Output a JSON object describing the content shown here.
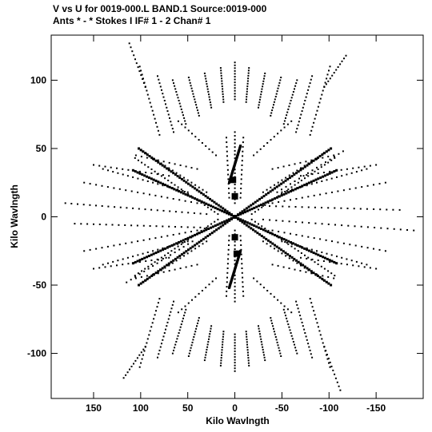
{
  "chart_data": {
    "type": "scatter",
    "title_line1": "V vs U for 0019-000.L BAND.1   Source:0019-000",
    "title_line2": "Ants * - *     Stokes I  IF# 1 - 2  Chan# 1",
    "xlabel": "Kilo Wavlngth",
    "ylabel": "Kilo Wavlngth",
    "xlim": [
      195,
      -200
    ],
    "ylim": [
      -133,
      133
    ],
    "x_reversed": true,
    "grid": false,
    "legend": "none",
    "xticks": [
      {
        "value": 150,
        "label": "150"
      },
      {
        "value": 100,
        "label": "100"
      },
      {
        "value": 50,
        "label": "50"
      },
      {
        "value": 0,
        "label": "0"
      },
      {
        "value": -50,
        "label": "-50"
      },
      {
        "value": -100,
        "label": "-100"
      },
      {
        "value": -150,
        "label": "-150"
      }
    ],
    "yticks": [
      {
        "value": 100,
        "label": "100"
      },
      {
        "value": 50,
        "label": "50"
      },
      {
        "value": 0,
        "label": "0"
      },
      {
        "value": -50,
        "label": "-50"
      },
      {
        "value": -100,
        "label": "-100"
      }
    ],
    "tracks": [
      {
        "start": [
          0,
          86
        ],
        "end": [
          0,
          113
        ],
        "points": 14
      },
      {
        "start": [
          12,
          84
        ],
        "end": [
          15,
          109
        ],
        "points": 14
      },
      {
        "start": [
          -12,
          84
        ],
        "end": [
          -15,
          109
        ],
        "points": 14
      },
      {
        "start": [
          25,
          80
        ],
        "end": [
          32,
          105
        ],
        "points": 14
      },
      {
        "start": [
          -25,
          80
        ],
        "end": [
          -32,
          105
        ],
        "points": 14
      },
      {
        "start": [
          38,
          74
        ],
        "end": [
          49,
          102
        ],
        "points": 15
      },
      {
        "start": [
          -38,
          74
        ],
        "end": [
          -49,
          102
        ],
        "points": 15
      },
      {
        "start": [
          52,
          68
        ],
        "end": [
          66,
          100
        ],
        "points": 16
      },
      {
        "start": [
          -52,
          68
        ],
        "end": [
          -66,
          100
        ],
        "points": 16
      },
      {
        "start": [
          65,
          62
        ],
        "end": [
          82,
          103
        ],
        "points": 17
      },
      {
        "start": [
          -65,
          62
        ],
        "end": [
          -82,
          103
        ],
        "points": 17
      },
      {
        "start": [
          80,
          60
        ],
        "end": [
          101,
          110
        ],
        "points": 18
      },
      {
        "start": [
          -80,
          60
        ],
        "end": [
          -101,
          110
        ],
        "points": 18
      },
      {
        "start": [
          95,
          95
        ],
        "end": [
          112,
          127
        ],
        "points": 12
      },
      {
        "start": [
          -95,
          95
        ],
        "end": [
          -118,
          118
        ],
        "points": 12
      },
      {
        "start": [
          0,
          -86
        ],
        "end": [
          0,
          -113
        ],
        "points": 14
      },
      {
        "start": [
          -12,
          -84
        ],
        "end": [
          -15,
          -109
        ],
        "points": 14
      },
      {
        "start": [
          12,
          -84
        ],
        "end": [
          15,
          -109
        ],
        "points": 14
      },
      {
        "start": [
          -25,
          -80
        ],
        "end": [
          -32,
          -105
        ],
        "points": 14
      },
      {
        "start": [
          25,
          -80
        ],
        "end": [
          32,
          -105
        ],
        "points": 14
      },
      {
        "start": [
          -38,
          -74
        ],
        "end": [
          -49,
          -102
        ],
        "points": 15
      },
      {
        "start": [
          38,
          -74
        ],
        "end": [
          49,
          -102
        ],
        "points": 15
      },
      {
        "start": [
          -52,
          -68
        ],
        "end": [
          -66,
          -100
        ],
        "points": 16
      },
      {
        "start": [
          52,
          -68
        ],
        "end": [
          66,
          -100
        ],
        "points": 16
      },
      {
        "start": [
          -65,
          -62
        ],
        "end": [
          -82,
          -103
        ],
        "points": 17
      },
      {
        "start": [
          65,
          -62
        ],
        "end": [
          82,
          -103
        ],
        "points": 17
      },
      {
        "start": [
          -80,
          -60
        ],
        "end": [
          -101,
          -110
        ],
        "points": 18
      },
      {
        "start": [
          80,
          -60
        ],
        "end": [
          101,
          -110
        ],
        "points": 18
      },
      {
        "start": [
          -95,
          -95
        ],
        "end": [
          -112,
          -127
        ],
        "points": 12
      },
      {
        "start": [
          95,
          -95
        ],
        "end": [
          118,
          -118
        ],
        "points": 12
      },
      {
        "start": [
          0,
          10
        ],
        "end": [
          0,
          62
        ],
        "points": 20
      },
      {
        "start": [
          6,
          14
        ],
        "end": [
          9,
          58
        ],
        "points": 14
      },
      {
        "start": [
          -6,
          14
        ],
        "end": [
          -9,
          58
        ],
        "points": 14
      },
      {
        "start": [
          0,
          -10
        ],
        "end": [
          0,
          -62
        ],
        "points": 20
      },
      {
        "start": [
          6,
          -14
        ],
        "end": [
          9,
          -58
        ],
        "points": 14
      },
      {
        "start": [
          -6,
          -14
        ],
        "end": [
          -9,
          -58
        ],
        "points": 14
      },
      {
        "start": [
          18,
          2
        ],
        "end": [
          106,
          43
        ],
        "points": 26
      },
      {
        "start": [
          -18,
          -2
        ],
        "end": [
          -106,
          -43
        ],
        "points": 26
      },
      {
        "start": [
          -18,
          2
        ],
        "end": [
          -106,
          43
        ],
        "points": 26
      },
      {
        "start": [
          18,
          -2
        ],
        "end": [
          106,
          -43
        ],
        "points": 26
      },
      {
        "start": [
          30,
          18
        ],
        "end": [
          98,
          48
        ],
        "points": 18
      },
      {
        "start": [
          -30,
          -18
        ],
        "end": [
          -98,
          -48
        ],
        "points": 18
      },
      {
        "start": [
          -30,
          18
        ],
        "end": [
          -98,
          48
        ],
        "points": 18
      },
      {
        "start": [
          30,
          -18
        ],
        "end": [
          98,
          -48
        ],
        "points": 18
      },
      {
        "start": [
          40,
          35
        ],
        "end": [
          105,
          45
        ],
        "points": 12
      },
      {
        "start": [
          -40,
          -35
        ],
        "end": [
          -105,
          -45
        ],
        "points": 12
      },
      {
        "start": [
          -40,
          35
        ],
        "end": [
          -105,
          45
        ],
        "points": 12
      },
      {
        "start": [
          40,
          -35
        ],
        "end": [
          105,
          -45
        ],
        "points": 12
      },
      {
        "start": [
          30,
          2
        ],
        "end": [
          180,
          10
        ],
        "points": 24
      },
      {
        "start": [
          -30,
          -2
        ],
        "end": [
          -190,
          -10
        ],
        "points": 24
      },
      {
        "start": [
          30,
          -8
        ],
        "end": [
          170,
          -5
        ],
        "points": 22
      },
      {
        "start": [
          -30,
          8
        ],
        "end": [
          -175,
          5
        ],
        "points": 22
      },
      {
        "start": [
          40,
          10
        ],
        "end": [
          160,
          25
        ],
        "points": 20
      },
      {
        "start": [
          -40,
          -10
        ],
        "end": [
          -160,
          -25
        ],
        "points": 20
      },
      {
        "start": [
          -40,
          10
        ],
        "end": [
          -160,
          25
        ],
        "points": 20
      },
      {
        "start": [
          40,
          -10
        ],
        "end": [
          160,
          -25
        ],
        "points": 20
      },
      {
        "start": [
          50,
          18
        ],
        "end": [
          140,
          35
        ],
        "points": 18
      },
      {
        "start": [
          -50,
          -18
        ],
        "end": [
          -140,
          -35
        ],
        "points": 18
      },
      {
        "start": [
          -50,
          18
        ],
        "end": [
          -140,
          35
        ],
        "points": 18
      },
      {
        "start": [
          50,
          -18
        ],
        "end": [
          140,
          -35
        ],
        "points": 18
      },
      {
        "start": [
          45,
          -18
        ],
        "end": [
          115,
          -48
        ],
        "points": 16
      },
      {
        "start": [
          -45,
          18
        ],
        "end": [
          -115,
          48
        ],
        "points": 16
      },
      {
        "start": [
          20,
          45
        ],
        "end": [
          60,
          70
        ],
        "points": 12
      },
      {
        "start": [
          -20,
          -45
        ],
        "end": [
          -60,
          -70
        ],
        "points": 12
      },
      {
        "start": [
          -20,
          45
        ],
        "end": [
          -60,
          70
        ],
        "points": 12
      },
      {
        "start": [
          20,
          -45
        ],
        "end": [
          60,
          -70
        ],
        "points": 12
      },
      {
        "start": [
          70,
          30
        ],
        "end": [
          150,
          38
        ],
        "points": 14
      },
      {
        "start": [
          -70,
          -30
        ],
        "end": [
          -150,
          -38
        ],
        "points": 14
      },
      {
        "start": [
          -70,
          30
        ],
        "end": [
          -150,
          38
        ],
        "points": 14
      },
      {
        "start": [
          70,
          -30
        ],
        "end": [
          150,
          -38
        ],
        "points": 14
      }
    ],
    "dense_lines": [
      {
        "start": [
          102,
          50
        ],
        "end": [
          -102,
          -50
        ],
        "points": 90
      },
      {
        "start": [
          108,
          -34
        ],
        "end": [
          -108,
          34
        ],
        "points": 90
      },
      {
        "start": [
          -102,
          50
        ],
        "end": [
          102,
          -50
        ],
        "points": 90
      },
      {
        "start": [
          -108,
          -34
        ],
        "end": [
          108,
          34
        ],
        "points": 90
      },
      {
        "start": [
          6,
          25
        ],
        "end": [
          -6,
          52
        ],
        "points": 40
      },
      {
        "start": [
          -6,
          -25
        ],
        "end": [
          6,
          -52
        ],
        "points": 40
      }
    ],
    "markers": [
      {
        "x": 0,
        "y": 15
      },
      {
        "x": 0,
        "y": -15
      },
      {
        "x": 2,
        "y": 27
      },
      {
        "x": -2,
        "y": -27
      }
    ]
  }
}
